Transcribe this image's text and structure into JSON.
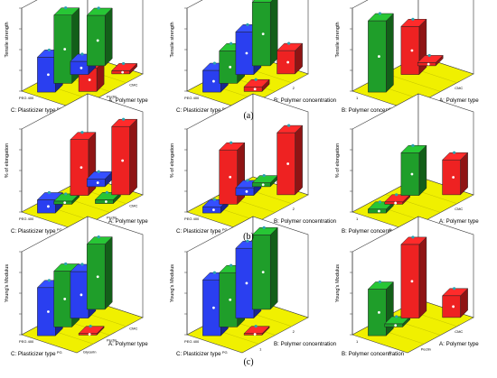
{
  "panel_labels": [
    "(a)",
    "(b)",
    "(c)"
  ],
  "colors": {
    "blue": "#2a3ff0",
    "green": "#1f9e2a",
    "red": "#ee2222",
    "floor": "#f0f000",
    "marker": "#2aa3b0"
  },
  "chart_data": [
    {
      "type": "bar3d",
      "row": 0,
      "col": 0,
      "ylabel": "Tensile strength",
      "left_axis_label": "C: Plasticizer type",
      "right_axis_label": "A: Polymer type",
      "left_ticks": [
        "PEG 400",
        "PG"
      ],
      "right_ticks": [
        "Glycerin",
        "Pectin",
        "CMC"
      ],
      "value_range": [
        0,
        1
      ],
      "bars": [
        {
          "i": 0,
          "j": 0,
          "value": 0.45,
          "color": "blue"
        },
        {
          "i": 0,
          "j": 1,
          "value": 0.88,
          "color": "green"
        },
        {
          "i": 0,
          "j": 2,
          "value": 0.17,
          "color": "blue"
        },
        {
          "i": 0,
          "j": 3,
          "value": 0.65,
          "color": "green"
        },
        {
          "i": 1,
          "j": 1,
          "value": 0.3,
          "color": "red"
        },
        {
          "i": 1,
          "j": 3,
          "value": 0.04,
          "color": "red"
        }
      ]
    },
    {
      "type": "bar3d",
      "row": 0,
      "col": 1,
      "ylabel": "Tensile strength",
      "left_axis_label": "C: Plasticizer type",
      "right_axis_label": "B: Polymer concentration",
      "left_ticks": [
        "PEG 400",
        "PG"
      ],
      "right_ticks": [
        "1",
        "2"
      ],
      "value_range": [
        0,
        1
      ],
      "bars": [
        {
          "i": 0,
          "j": 0,
          "value": 0.28,
          "color": "blue"
        },
        {
          "i": 0,
          "j": 1,
          "value": 0.42,
          "color": "green"
        },
        {
          "i": 0,
          "j": 2,
          "value": 0.55,
          "color": "blue"
        },
        {
          "i": 0,
          "j": 3,
          "value": 0.82,
          "color": "green"
        },
        {
          "i": 1,
          "j": 1,
          "value": 0.06,
          "color": "red"
        },
        {
          "i": 1,
          "j": 3,
          "value": 0.3,
          "color": "red"
        }
      ]
    },
    {
      "type": "bar3d",
      "row": 0,
      "col": 2,
      "ylabel": "Tensile strength",
      "left_axis_label": "B: Polymer concentration",
      "right_axis_label": "A: Polymer type",
      "left_ticks": [
        "1",
        "2"
      ],
      "right_ticks": [
        "Pectin",
        "CMC"
      ],
      "value_range": [
        0,
        1
      ],
      "bars": [
        {
          "i": 0,
          "j": 0,
          "value": 0.92,
          "color": "green"
        },
        {
          "i": 0,
          "j": 2,
          "value": 0.62,
          "color": "red"
        },
        {
          "i": 0,
          "j": 3,
          "value": 0.04,
          "color": "red"
        }
      ]
    },
    {
      "type": "bar3d",
      "row": 1,
      "col": 0,
      "ylabel": "% of elongation",
      "left_axis_label": "C: Plasticizer type",
      "right_axis_label": "A: Polymer type",
      "left_ticks": [
        "PEG 400",
        "PG"
      ],
      "right_ticks": [
        "Glycerin",
        "Pectin",
        "CMC"
      ],
      "value_range": [
        0,
        1
      ],
      "bars": [
        {
          "i": 0,
          "j": 0,
          "value": 0.17,
          "color": "blue"
        },
        {
          "i": 0,
          "j": 1,
          "value": 0.04,
          "color": "green"
        },
        {
          "i": 0,
          "j": 2,
          "value": 0.72,
          "color": "red"
        },
        {
          "i": 0,
          "j": 3,
          "value": 0.1,
          "color": "blue"
        },
        {
          "i": 1,
          "j": 2,
          "value": 0.05,
          "color": "green"
        },
        {
          "i": 1,
          "j": 3,
          "value": 0.88,
          "color": "red"
        }
      ]
    },
    {
      "type": "bar3d",
      "row": 1,
      "col": 1,
      "ylabel": "% of elongation",
      "left_axis_label": "C: Plasticizer type",
      "right_axis_label": "B: Polymer concentration",
      "left_ticks": [
        "PEG 400",
        "PG"
      ],
      "right_ticks": [
        "1",
        "2"
      ],
      "value_range": [
        0,
        1
      ],
      "bars": [
        {
          "i": 0,
          "j": 0,
          "value": 0.08,
          "color": "blue"
        },
        {
          "i": 0,
          "j": 1,
          "value": 0.7,
          "color": "red"
        },
        {
          "i": 0,
          "j": 2,
          "value": 0.1,
          "color": "blue"
        },
        {
          "i": 0,
          "j": 3,
          "value": 0.05,
          "color": "green"
        },
        {
          "i": 1,
          "j": 3,
          "value": 0.8,
          "color": "red"
        }
      ]
    },
    {
      "type": "bar3d",
      "row": 1,
      "col": 2,
      "ylabel": "% of elongation",
      "left_axis_label": "B: Polymer concentration",
      "right_axis_label": "A: Polymer type",
      "left_ticks": [
        "1",
        "2"
      ],
      "right_ticks": [
        "Pectin",
        "CMC"
      ],
      "value_range": [
        0,
        1
      ],
      "bars": [
        {
          "i": 0,
          "j": 0,
          "value": 0.05,
          "color": "green"
        },
        {
          "i": 0,
          "j": 1,
          "value": 0.03,
          "color": "red"
        },
        {
          "i": 0,
          "j": 2,
          "value": 0.55,
          "color": "green"
        },
        {
          "i": 1,
          "j": 3,
          "value": 0.45,
          "color": "red"
        }
      ]
    },
    {
      "type": "bar3d",
      "row": 2,
      "col": 0,
      "ylabel": "Young's Modulus",
      "left_axis_label": "C: Plasticizer type",
      "right_axis_label": "A: Polymer type",
      "left_ticks": [
        "PEG 400",
        "PG"
      ],
      "right_ticks": [
        "Glycerin",
        "Pectin",
        "CMC"
      ],
      "value_range": [
        0,
        1
      ],
      "bars": [
        {
          "i": 0,
          "j": 0,
          "value": 0.62,
          "color": "blue"
        },
        {
          "i": 0,
          "j": 1,
          "value": 0.72,
          "color": "green"
        },
        {
          "i": 0,
          "j": 2,
          "value": 0.6,
          "color": "blue"
        },
        {
          "i": 0,
          "j": 3,
          "value": 0.84,
          "color": "green"
        },
        {
          "i": 1,
          "j": 1,
          "value": 0.02,
          "color": "red"
        }
      ]
    },
    {
      "type": "bar3d",
      "row": 2,
      "col": 1,
      "ylabel": "Young's Modulus",
      "left_axis_label": "C: Plasticizer type",
      "right_axis_label": "B: Polymer concentration",
      "left_ticks": [
        "PEG 400",
        "PG"
      ],
      "right_ticks": [
        "1",
        "2"
      ],
      "value_range": [
        0,
        1
      ],
      "bars": [
        {
          "i": 0,
          "j": 0,
          "value": 0.72,
          "color": "blue"
        },
        {
          "i": 0,
          "j": 1,
          "value": 0.7,
          "color": "green"
        },
        {
          "i": 0,
          "j": 2,
          "value": 0.9,
          "color": "blue"
        },
        {
          "i": 0,
          "j": 3,
          "value": 0.96,
          "color": "green"
        },
        {
          "i": 1,
          "j": 1,
          "value": 0.02,
          "color": "red"
        }
      ]
    },
    {
      "type": "bar3d",
      "row": 2,
      "col": 2,
      "ylabel": "Young's Modulus",
      "left_axis_label": "B: Polymer concentration",
      "right_axis_label": "A: Polymer type",
      "left_ticks": [
        "1",
        "2"
      ],
      "right_ticks": [
        "Pectin",
        "CMC"
      ],
      "value_range": [
        0,
        1
      ],
      "bars": [
        {
          "i": 0,
          "j": 0,
          "value": 0.6,
          "color": "green"
        },
        {
          "i": 0,
          "j": 1,
          "value": 0.04,
          "color": "green"
        },
        {
          "i": 0,
          "j": 2,
          "value": 0.95,
          "color": "red"
        },
        {
          "i": 1,
          "j": 3,
          "value": 0.28,
          "color": "red"
        }
      ]
    }
  ]
}
